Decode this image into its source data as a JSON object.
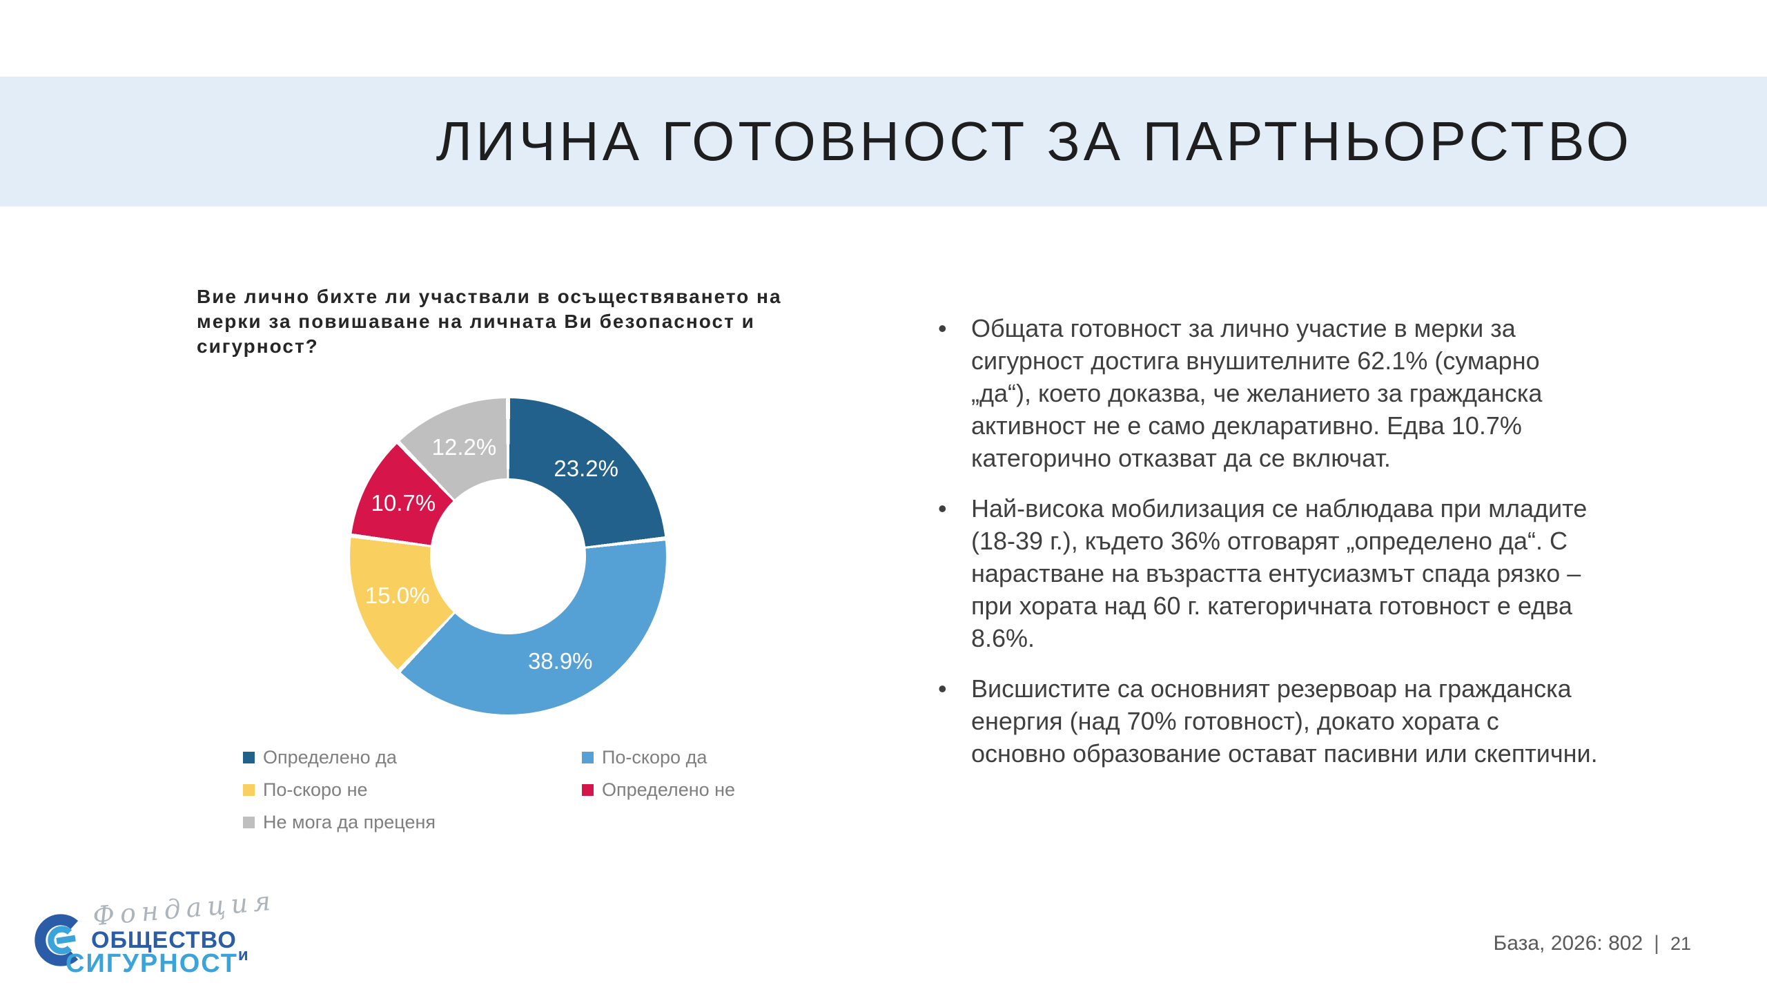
{
  "header": {
    "title": "ЛИЧНА ГОТОВНОСТ ЗА ПАРТНЬОРСТВО"
  },
  "chart_data": {
    "type": "pie",
    "subtype": "donut",
    "title": "Вие лично бихте ли участвали в осъществяването на мерки за повишаване на личната Ви безопасност и сигурност?",
    "unit": "%",
    "start_angle": "top",
    "direction": "clockwise",
    "hole_ratio": 0.49,
    "label_style": "white percentage labels inside slices, one decimal",
    "legend_position": "bottom, two columns",
    "segments": [
      {
        "label": "Определено да",
        "value": 23.2,
        "color": "#21618C"
      },
      {
        "label": "По-скоро да",
        "value": 38.9,
        "color": "#55A0D5"
      },
      {
        "label": "По-скоро не",
        "value": 15.0,
        "color": "#F9CF60"
      },
      {
        "label": "Определено не",
        "value": 10.7,
        "color": "#D6164A"
      },
      {
        "label": "Не мога да преценя",
        "value": 12.2,
        "color": "#BFBFBF"
      }
    ]
  },
  "bullets": [
    "Общата готовност за лично участие в мерки за сигурност достига внушителните 62.1% (сумарно „да“), което доказва, че желанието за гражданска активност не е само декларативно. Едва 10.7% категорично отказват да се включат.",
    "Най-висока мобилизация се наблюдава при младите (18-39 г.), където 36% отговарят „определено да“. С нарастване на възрастта ентусиазмът спада рязко – при хората над 60 г. категоричната готовност е едва 8.6%.",
    "Висшистите са основният резервоар на гражданска енергия (над 70% готовност), докато хората с основно образование остават пасивни или скептични."
  ],
  "logo": {
    "script_word": "Фондация",
    "name_line1": "ОБЩЕСТВО",
    "name_conj": "и",
    "name_line2": "СИГУРНОСТ",
    "dark_blue": "#2A5CA8",
    "light_blue": "#3AA3DA"
  },
  "footer": {
    "base_label": "База, 2026: 802",
    "separator": "|",
    "page_number": "21"
  }
}
